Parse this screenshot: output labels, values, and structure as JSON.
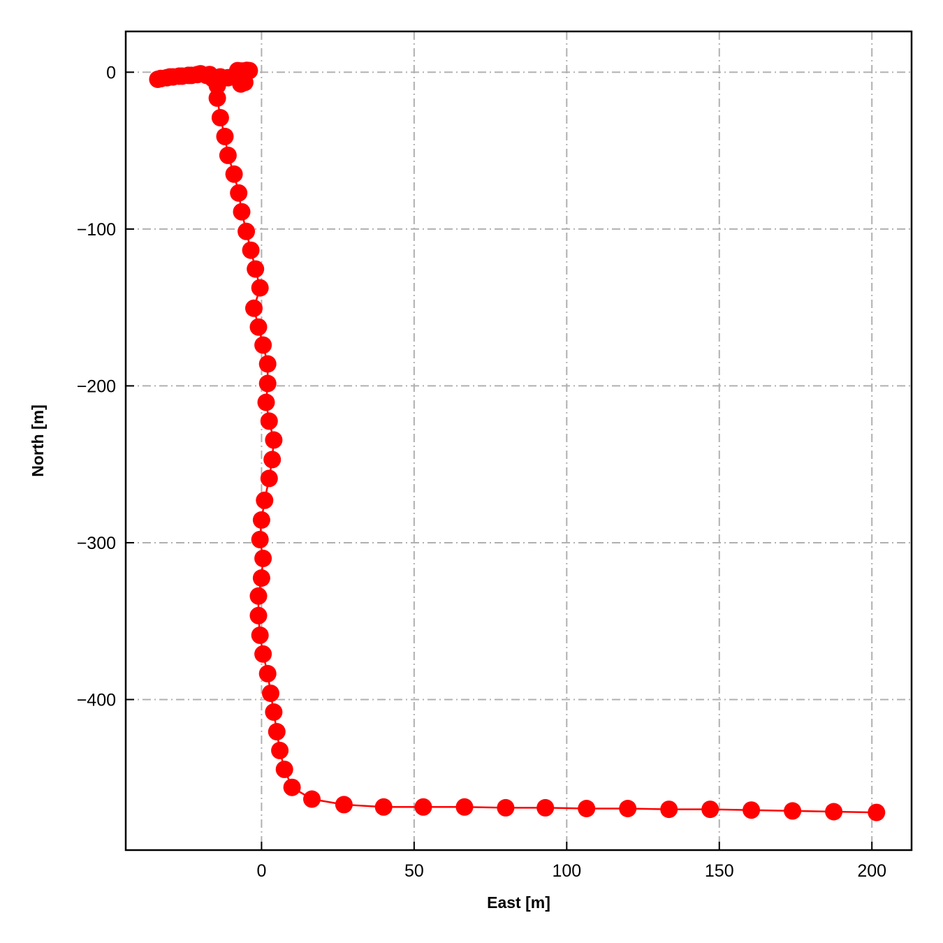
{
  "chart_data": {
    "type": "line",
    "title": "",
    "xlabel": "East [m]",
    "ylabel": "North [m]",
    "xlim": [
      -44.5,
      213
    ],
    "ylim": [
      -496,
      26
    ],
    "grid": true,
    "xticks": [
      0,
      50,
      100,
      150,
      200
    ],
    "xtick_labels": [
      "0",
      "50",
      "100",
      "150",
      "200"
    ],
    "yticks": [
      0,
      -100,
      -200,
      -300,
      -400
    ],
    "ytick_labels": [
      "0",
      "−100",
      "−200",
      "−300",
      "−400"
    ],
    "series": [
      {
        "color": "#ff0000",
        "marker": "circle",
        "points": [
          [
            -4.8,
            1.2
          ],
          [
            -4.0,
            1.0
          ],
          [
            -6.5,
            0.8
          ],
          [
            -7.8,
            1.0
          ],
          [
            -6.5,
            -1.5
          ],
          [
            -9.0,
            -2.5
          ],
          [
            -7.5,
            -4.0
          ],
          [
            -5.5,
            -6.5
          ],
          [
            -6.8,
            -7.5
          ],
          [
            -11.0,
            -3.5
          ],
          [
            -13.5,
            -3.0
          ],
          [
            -17.0,
            -1.5
          ],
          [
            -20.0,
            -1.0
          ],
          [
            -23.0,
            -2.0
          ],
          [
            -26.0,
            -2.5
          ],
          [
            -29.0,
            -3.0
          ],
          [
            -31.0,
            -3.5
          ],
          [
            -33.0,
            -4.0
          ],
          [
            -34.0,
            -4.5
          ],
          [
            -33.0,
            -4.0
          ],
          [
            -30.0,
            -3.0
          ],
          [
            -27.0,
            -2.5
          ],
          [
            -24.0,
            -2.0
          ],
          [
            -21.0,
            -1.5
          ],
          [
            -18.0,
            -2.0
          ],
          [
            -16.0,
            -4.0
          ],
          [
            -14.5,
            -8.5
          ],
          [
            -14.5,
            -16.5
          ],
          [
            -13.5,
            -29.0
          ],
          [
            -12.0,
            -41.0
          ],
          [
            -11.0,
            -53.0
          ],
          [
            -9.0,
            -65.0
          ],
          [
            -7.5,
            -77.0
          ],
          [
            -6.5,
            -89.0
          ],
          [
            -5.0,
            -101.5
          ],
          [
            -3.5,
            -113.5
          ],
          [
            -2.0,
            -125.5
          ],
          [
            -0.5,
            -137.5
          ],
          [
            -2.5,
            -150.5
          ],
          [
            -1.0,
            -162.5
          ],
          [
            0.5,
            -174.0
          ],
          [
            2.0,
            -186.0
          ],
          [
            2.0,
            -198.5
          ],
          [
            1.5,
            -210.5
          ],
          [
            2.5,
            -222.5
          ],
          [
            4.0,
            -234.5
          ],
          [
            3.5,
            -247.0
          ],
          [
            2.5,
            -259.0
          ],
          [
            1.0,
            -273.0
          ],
          [
            0.0,
            -285.5
          ],
          [
            -0.5,
            -298.0
          ],
          [
            0.5,
            -310.0
          ],
          [
            0.0,
            -322.5
          ],
          [
            -1.0,
            -334.0
          ],
          [
            -1.0,
            -346.5
          ],
          [
            -0.5,
            -359.0
          ],
          [
            0.5,
            -371.0
          ],
          [
            2.0,
            -383.5
          ],
          [
            3.0,
            -396.0
          ],
          [
            4.0,
            -408.0
          ],
          [
            5.0,
            -420.5
          ],
          [
            6.0,
            -432.5
          ],
          [
            7.5,
            -444.5
          ],
          [
            10.0,
            -456.0
          ],
          [
            16.5,
            -463.5
          ],
          [
            27.0,
            -467.0
          ],
          [
            40.0,
            -468.5
          ],
          [
            53.0,
            -468.5
          ],
          [
            66.5,
            -468.5
          ],
          [
            80.0,
            -469.0
          ],
          [
            93.0,
            -469.0
          ],
          [
            106.5,
            -469.5
          ],
          [
            120.0,
            -469.5
          ],
          [
            133.5,
            -470.0
          ],
          [
            147.0,
            -470.0
          ],
          [
            160.5,
            -470.5
          ],
          [
            174.0,
            -471.0
          ],
          [
            187.5,
            -471.5
          ],
          [
            201.5,
            -472.0
          ]
        ]
      }
    ]
  }
}
